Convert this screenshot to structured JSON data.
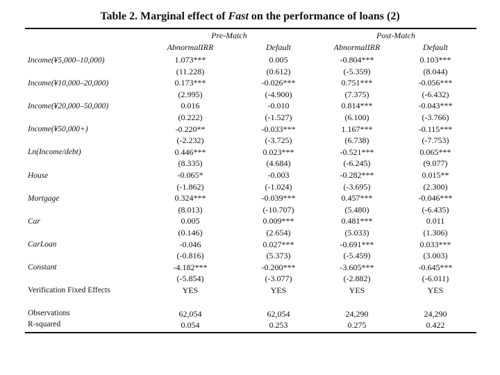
{
  "title": {
    "prefix": "Table 2. Marginal effect of ",
    "italic": "Fast",
    "suffix": " on the performance of loans (2)"
  },
  "groups": [
    "Pre-Match",
    "Post-Match"
  ],
  "columns": [
    "AbnormalIRR",
    "Default",
    "AbnormalIRR",
    "Default"
  ],
  "row_labels": [
    "Income(¥5,000–10,000)",
    "Income(¥10,000–20,000)",
    "Income(¥20,000–50,000)",
    "Income(¥50,000+)",
    "Ln(Income/debt)",
    "House",
    "Mortgage",
    "Car",
    "CarLoan",
    "Constant",
    "Verification Fixed Effects"
  ],
  "footer_labels": [
    "Observations",
    "R-squared"
  ],
  "cells": [
    [
      "1.073***",
      "(11.228)",
      "0.173***",
      "(2.995)",
      "0.016",
      "(0.222)",
      "-0.220**",
      "(-2.232)",
      "0.446***",
      "(8.335)",
      "-0.065*",
      "(-1.862)",
      "0.324***",
      "(8.013)",
      "0.005",
      "(0.146)",
      "-0.046",
      "(-0.816)",
      "-4.182***",
      "(-5.854)",
      "YES"
    ],
    [
      "0.005",
      "(0.612)",
      "-0.026***",
      "(-4.900)",
      "-0.010",
      "(-1.527)",
      "-0.033***",
      "(-3.725)",
      "0.023***",
      "(4.684)",
      "-0.003",
      "(-1.024)",
      "-0.039***",
      "(-10.707)",
      "0.009***",
      "(2.654)",
      "0.027***",
      "(5.373)",
      "-0.200***",
      "(-3.077)",
      "YES"
    ],
    [
      "-0.804***",
      "(-5.359)",
      "0.751***",
      "(7.375)",
      "0.814***",
      "(6.100)",
      "1.167***",
      "(6.738)",
      "-0.521***",
      "(-6.245)",
      "-0.282***",
      "(-3.695)",
      "0.457***",
      "(5.480)",
      "0.481***",
      "(5.033)",
      "-0.691***",
      "(-5.459)",
      "-3.605***",
      "(-2.882)",
      "YES"
    ],
    [
      "0.103***",
      "(8.044)",
      "-0.056***",
      "(-6.432)",
      "-0.043***",
      "(-3.766)",
      "-0.115***",
      "(-7.753)",
      "0.065***",
      "(9.077)",
      "0.015**",
      "(2.300)",
      "-0.046***",
      "(-6.435)",
      "0.011",
      "(1.306)",
      "0.033***",
      "(3.003)",
      "-0.645***",
      "(-6.011)",
      "YES"
    ]
  ],
  "footer": [
    [
      "62,054",
      "0.054"
    ],
    [
      "62,054",
      "0.253"
    ],
    [
      "24,290",
      "0.275"
    ],
    [
      "24,290",
      "0.422"
    ]
  ]
}
